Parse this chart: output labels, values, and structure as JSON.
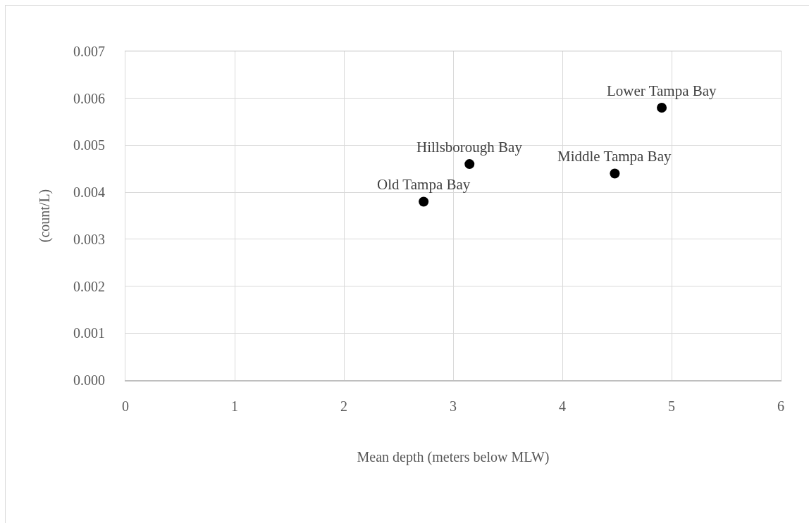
{
  "chart_data": {
    "type": "scatter",
    "xlabel": "Mean depth (meters below MLW)",
    "ylabel": "(count/L)",
    "x": [
      2.73,
      3.15,
      4.48,
      4.91
    ],
    "values": [
      0.0038,
      0.0046,
      0.0044,
      0.0058
    ],
    "color": "#000000",
    "marker": "circle",
    "xlim": [
      0,
      6
    ],
    "xticks": [
      0,
      1,
      2,
      3,
      4,
      5,
      6
    ],
    "ylim": [
      0,
      0.007
    ],
    "yticks": [
      {
        "value": 0,
        "label": "0.000"
      },
      0.001,
      0.002,
      0.003,
      0.004,
      0.005,
      0.006,
      0.007
    ],
    "grid": true,
    "annotations": [
      {
        "text": "Old Tampa Bay",
        "x": 2.73,
        "y": 0.0038
      },
      {
        "text": "Hillsborough Bay",
        "x": 3.15,
        "y": 0.0046
      },
      {
        "text": "Middle Tampa Bay",
        "x": 4.48,
        "y": 0.0044
      },
      {
        "text": "Lower Tampa Bay",
        "x": 4.91,
        "y": 0.0058
      }
    ]
  }
}
